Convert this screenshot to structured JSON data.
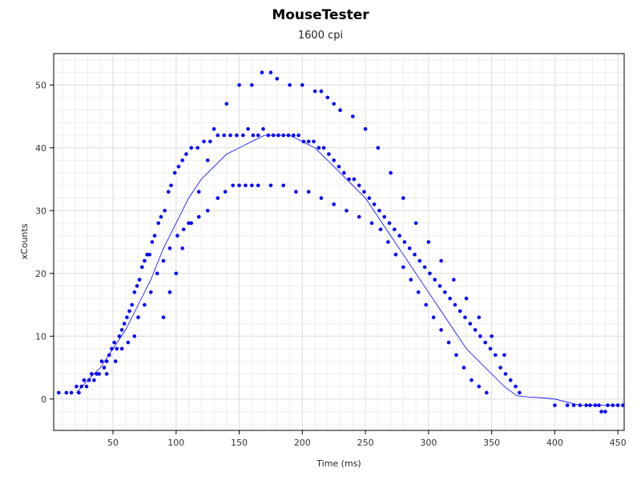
{
  "chart_data": {
    "type": "scatter",
    "title": "MouseTester",
    "subtitle": "1600 cpi",
    "xlabel": "Time (ms)",
    "ylabel": "xCounts",
    "xlim": [
      3,
      455
    ],
    "ylim": [
      -5,
      55
    ],
    "x_ticks": [
      50,
      100,
      150,
      200,
      250,
      300,
      350,
      400,
      450
    ],
    "y_ticks": [
      0,
      10,
      20,
      30,
      40,
      50
    ],
    "grid": true,
    "point_color": "#0000ff",
    "line_color": "#0000ff",
    "series": [
      {
        "type": "scatter",
        "points": [
          [
            7,
            1
          ],
          [
            13,
            1
          ],
          [
            17,
            1
          ],
          [
            21,
            2
          ],
          [
            23,
            1
          ],
          [
            25,
            2
          ],
          [
            27,
            3
          ],
          [
            29,
            2
          ],
          [
            31,
            3
          ],
          [
            33,
            4
          ],
          [
            35,
            3
          ],
          [
            37,
            4
          ],
          [
            39,
            4
          ],
          [
            41,
            6
          ],
          [
            43,
            5
          ],
          [
            45,
            6
          ],
          [
            47,
            7
          ],
          [
            49,
            8
          ],
          [
            51,
            9
          ],
          [
            53,
            8
          ],
          [
            55,
            10
          ],
          [
            57,
            11
          ],
          [
            59,
            12
          ],
          [
            61,
            13
          ],
          [
            63,
            14
          ],
          [
            65,
            15
          ],
          [
            67,
            17
          ],
          [
            69,
            18
          ],
          [
            71,
            19
          ],
          [
            73,
            21
          ],
          [
            75,
            22
          ],
          [
            77,
            23
          ],
          [
            79,
            23
          ],
          [
            81,
            25
          ],
          [
            83,
            26
          ],
          [
            86,
            28
          ],
          [
            88,
            29
          ],
          [
            91,
            30
          ],
          [
            94,
            33
          ],
          [
            96,
            34
          ],
          [
            99,
            36
          ],
          [
            102,
            37
          ],
          [
            105,
            38
          ],
          [
            108,
            39
          ],
          [
            112,
            40
          ],
          [
            117,
            40
          ],
          [
            122,
            41
          ],
          [
            127,
            41
          ],
          [
            133,
            42
          ],
          [
            138,
            42
          ],
          [
            143,
            42
          ],
          [
            148,
            42
          ],
          [
            153,
            42
          ],
          [
            157,
            43
          ],
          [
            161,
            42
          ],
          [
            165,
            42
          ],
          [
            169,
            43
          ],
          [
            173,
            42
          ],
          [
            177,
            42
          ],
          [
            181,
            42
          ],
          [
            185,
            42
          ],
          [
            189,
            42
          ],
          [
            193,
            42
          ],
          [
            197,
            42
          ],
          [
            201,
            41
          ],
          [
            205,
            41
          ],
          [
            209,
            41
          ],
          [
            213,
            40
          ],
          [
            217,
            40
          ],
          [
            221,
            39
          ],
          [
            225,
            38
          ],
          [
            229,
            37
          ],
          [
            233,
            36
          ],
          [
            237,
            35
          ],
          [
            241,
            35
          ],
          [
            245,
            34
          ],
          [
            249,
            33
          ],
          [
            253,
            32
          ],
          [
            257,
            31
          ],
          [
            261,
            30
          ],
          [
            265,
            29
          ],
          [
            269,
            28
          ],
          [
            273,
            27
          ],
          [
            277,
            26
          ],
          [
            281,
            25
          ],
          [
            285,
            24
          ],
          [
            289,
            23
          ],
          [
            293,
            22
          ],
          [
            297,
            21
          ],
          [
            301,
            20
          ],
          [
            305,
            19
          ],
          [
            309,
            18
          ],
          [
            313,
            17
          ],
          [
            317,
            16
          ],
          [
            321,
            15
          ],
          [
            325,
            14
          ],
          [
            329,
            13
          ],
          [
            333,
            12
          ],
          [
            337,
            11
          ],
          [
            341,
            10
          ],
          [
            345,
            9
          ],
          [
            349,
            8
          ],
          [
            353,
            7
          ],
          [
            357,
            5
          ],
          [
            361,
            4
          ],
          [
            365,
            3
          ],
          [
            369,
            2
          ],
          [
            372,
            1
          ],
          [
            45,
            4
          ],
          [
            52,
            6
          ],
          [
            57,
            8
          ],
          [
            62,
            9
          ],
          [
            67,
            10
          ],
          [
            70,
            13
          ],
          [
            75,
            15
          ],
          [
            80,
            17
          ],
          [
            85,
            20
          ],
          [
            90,
            22
          ],
          [
            95,
            24
          ],
          [
            101,
            26
          ],
          [
            106,
            27
          ],
          [
            112,
            28
          ],
          [
            118,
            29
          ],
          [
            125,
            30
          ],
          [
            133,
            32
          ],
          [
            139,
            33
          ],
          [
            145,
            34
          ],
          [
            150,
            34
          ],
          [
            155,
            34
          ],
          [
            160,
            34
          ],
          [
            165,
            34
          ],
          [
            175,
            34
          ],
          [
            185,
            34
          ],
          [
            195,
            33
          ],
          [
            205,
            33
          ],
          [
            215,
            32
          ],
          [
            225,
            31
          ],
          [
            235,
            30
          ],
          [
            245,
            29
          ],
          [
            255,
            28
          ],
          [
            262,
            27
          ],
          [
            268,
            25
          ],
          [
            274,
            23
          ],
          [
            280,
            21
          ],
          [
            286,
            19
          ],
          [
            292,
            17
          ],
          [
            298,
            15
          ],
          [
            304,
            13
          ],
          [
            310,
            11
          ],
          [
            316,
            9
          ],
          [
            322,
            7
          ],
          [
            328,
            5
          ],
          [
            334,
            3
          ],
          [
            340,
            2
          ],
          [
            346,
            1
          ],
          [
            90,
            13
          ],
          [
            95,
            17
          ],
          [
            100,
            20
          ],
          [
            105,
            24
          ],
          [
            110,
            28
          ],
          [
            118,
            33
          ],
          [
            125,
            38
          ],
          [
            130,
            43
          ],
          [
            140,
            47
          ],
          [
            150,
            50
          ],
          [
            160,
            50
          ],
          [
            168,
            52
          ],
          [
            175,
            52
          ],
          [
            180,
            51
          ],
          [
            190,
            50
          ],
          [
            200,
            50
          ],
          [
            210,
            49
          ],
          [
            215,
            49
          ],
          [
            220,
            48
          ],
          [
            225,
            47
          ],
          [
            230,
            46
          ],
          [
            240,
            45
          ],
          [
            250,
            43
          ],
          [
            260,
            40
          ],
          [
            270,
            36
          ],
          [
            280,
            32
          ],
          [
            290,
            28
          ],
          [
            300,
            25
          ],
          [
            310,
            22
          ],
          [
            320,
            19
          ],
          [
            330,
            16
          ],
          [
            340,
            13
          ],
          [
            350,
            10
          ],
          [
            360,
            7
          ],
          [
            400,
            -1
          ],
          [
            410,
            -1
          ],
          [
            415,
            -1
          ],
          [
            420,
            -1
          ],
          [
            425,
            -1
          ],
          [
            428,
            -1
          ],
          [
            432,
            -1
          ],
          [
            435,
            -1
          ],
          [
            437,
            -2
          ],
          [
            440,
            -2
          ],
          [
            442,
            -1
          ],
          [
            446,
            -1
          ],
          [
            450,
            -1
          ],
          [
            454,
            -1
          ]
        ]
      },
      {
        "type": "line",
        "points": [
          [
            21,
            1
          ],
          [
            30,
            3
          ],
          [
            40,
            5
          ],
          [
            50,
            8
          ],
          [
            60,
            11
          ],
          [
            70,
            15
          ],
          [
            80,
            19
          ],
          [
            90,
            24
          ],
          [
            100,
            28
          ],
          [
            110,
            32
          ],
          [
            120,
            35
          ],
          [
            130,
            37
          ],
          [
            140,
            39
          ],
          [
            150,
            40
          ],
          [
            160,
            41
          ],
          [
            170,
            42
          ],
          [
            180,
            42
          ],
          [
            190,
            42
          ],
          [
            200,
            41
          ],
          [
            210,
            40
          ],
          [
            220,
            38
          ],
          [
            230,
            36
          ],
          [
            240,
            34
          ],
          [
            250,
            32
          ],
          [
            260,
            29
          ],
          [
            270,
            26
          ],
          [
            280,
            23
          ],
          [
            290,
            20
          ],
          [
            300,
            17
          ],
          [
            310,
            14
          ],
          [
            320,
            11
          ],
          [
            330,
            8
          ],
          [
            340,
            6
          ],
          [
            350,
            4
          ],
          [
            360,
            2
          ],
          [
            370,
            0.5
          ],
          [
            380,
            0.3
          ],
          [
            390,
            0.2
          ],
          [
            400,
            0
          ],
          [
            410,
            -0.5
          ],
          [
            420,
            -1
          ],
          [
            430,
            -1
          ],
          [
            440,
            -1
          ],
          [
            450,
            -1
          ]
        ]
      }
    ]
  }
}
